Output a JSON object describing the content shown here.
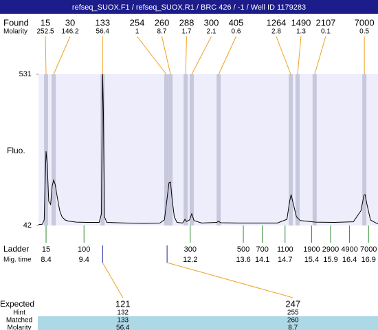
{
  "header": {
    "title": "refseq_SUOX.F1 / refseq_SUOX.R1 / BRC 426 / -1 / Well ID 1179283"
  },
  "chart_data": {
    "type": "electropherogram",
    "y_label": "Fluo.",
    "xlim": [
      8.2,
      17.15
    ],
    "ylim": [
      42,
      531
    ],
    "yticks": [
      42,
      531
    ],
    "trace_color": "#000000",
    "plot_background": "#ededfb",
    "x": [
      8.2,
      8.3,
      8.35,
      8.38,
      8.4,
      8.43,
      8.47,
      8.52,
      8.56,
      8.6,
      8.64,
      8.7,
      8.76,
      8.82,
      8.9,
      9.0,
      9.2,
      9.5,
      9.8,
      9.86,
      9.88,
      9.89,
      9.91,
      9.94,
      10.0,
      10.5,
      11.0,
      11.4,
      11.52,
      11.58,
      11.64,
      11.68,
      11.72,
      11.78,
      11.85,
      12.0,
      12.06,
      12.1,
      12.18,
      12.24,
      12.3,
      12.5,
      12.9,
      12.95,
      13.0,
      13.5,
      14.0,
      14.5,
      14.75,
      14.82,
      14.86,
      14.92,
      15.0,
      15.1,
      15.5,
      16.0,
      16.5,
      16.7,
      16.78,
      16.81,
      16.86,
      16.95,
      17.1,
      17.15
    ],
    "values": [
      45,
      46,
      60,
      200,
      282,
      240,
      120,
      110,
      170,
      189,
      175,
      130,
      90,
      70,
      60,
      56,
      53,
      52,
      52,
      80,
      400,
      531,
      420,
      70,
      52,
      50,
      49,
      50,
      60,
      120,
      180,
      182,
      130,
      70,
      52,
      50,
      62,
      55,
      60,
      80,
      58,
      50,
      52,
      56,
      51,
      50,
      50,
      50,
      62,
      120,
      142,
      110,
      70,
      58,
      53,
      52,
      54,
      90,
      140,
      142,
      110,
      60,
      50,
      48
    ],
    "found": {
      "label": "Found",
      "molarity_label": "Molarity",
      "color": "#f0a020",
      "band_color": "#c8c8dc",
      "sizes": [
        15,
        30,
        133,
        254,
        260,
        288,
        300,
        405,
        1264,
        1490,
        2107,
        7000
      ],
      "molarity": [
        252.5,
        146.2,
        56.4,
        1,
        8.7,
        1.7,
        2.1,
        0.6,
        2.8,
        1.3,
        0.1,
        0.5
      ],
      "x": [
        8.4,
        8.6,
        9.89,
        11.57,
        11.68,
        12.08,
        12.24,
        12.95,
        14.85,
        15.03,
        15.48,
        16.79
      ]
    },
    "ladder": {
      "label": "Ladder",
      "mig_time_label": "Mig. time",
      "color": "#2e8b2e",
      "sizes": [
        15,
        100,
        300,
        500,
        700,
        1100,
        1900,
        2900,
        4900,
        7000
      ],
      "mig_time": [
        8.4,
        9.4,
        12.2,
        13.6,
        14.1,
        14.7,
        15.4,
        15.9,
        16.4,
        16.9
      ]
    },
    "expected": {
      "label": "Expected",
      "hint_label": "Hint",
      "matched_label": "Matched",
      "molarity_label": "Molarity",
      "marker_color": "#2020a0",
      "row_color": "#add8e6",
      "sizes": [
        121,
        247
      ],
      "hint": [
        132,
        255
      ],
      "matched": [
        133,
        260
      ],
      "molarity": [
        56.4,
        8.7
      ],
      "x": [
        9.89,
        11.59
      ]
    }
  }
}
